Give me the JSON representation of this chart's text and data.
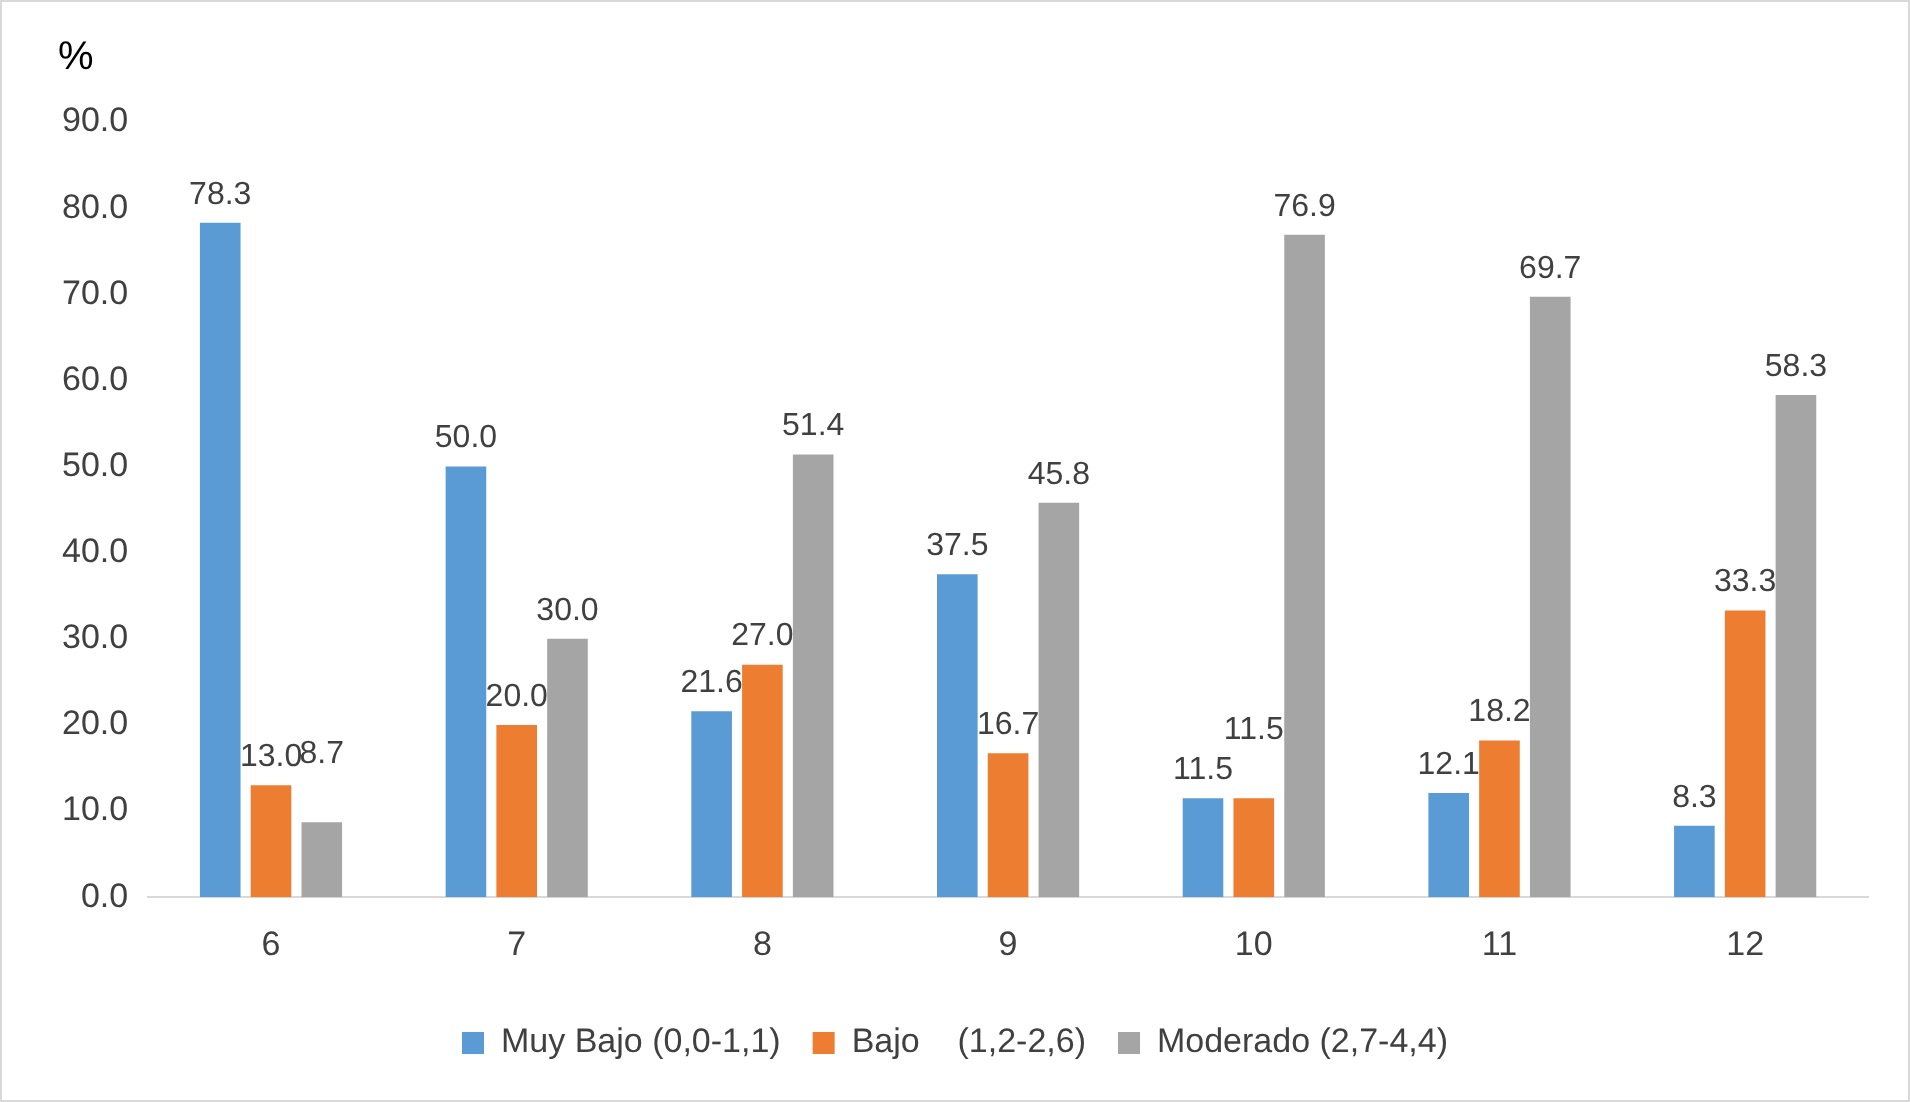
{
  "chart_data": {
    "type": "bar",
    "ylabel": "%",
    "categories": [
      "6",
      "7",
      "8",
      "9",
      "10",
      "11",
      "12"
    ],
    "series": [
      {
        "name": "Muy Bajo (0,0-1,1)",
        "color": "#5b9bd5",
        "values": [
          78.3,
          50.0,
          21.6,
          37.5,
          11.5,
          12.1,
          8.3
        ],
        "value_labels": [
          "78.3",
          "50.0",
          "21.6",
          "37.5",
          "11.5",
          "12.1",
          "8.3"
        ]
      },
      {
        "name": "Bajo    (1,2-2,6)",
        "color": "#ed7d31",
        "values": [
          13.0,
          20.0,
          27.0,
          16.7,
          11.5,
          18.2,
          33.3
        ],
        "value_labels": [
          "13.0",
          "20.0",
          "27.0",
          "16.7",
          "11.5",
          "18.2",
          "33.3"
        ]
      },
      {
        "name": "Moderado (2,7-4,4)",
        "color": "#a5a5a5",
        "values": [
          8.7,
          30.0,
          51.4,
          45.8,
          76.9,
          69.7,
          58.3
        ],
        "value_labels": [
          "8.7",
          "30.0",
          "51.4",
          "45.8",
          "76.9",
          "69.7",
          "58.3"
        ]
      }
    ],
    "ylim": [
      0,
      90
    ],
    "yticks": [
      {
        "value": 0,
        "label": "0.0"
      },
      {
        "value": 10,
        "label": "10.0"
      },
      {
        "value": 20,
        "label": "20.0"
      },
      {
        "value": 30,
        "label": "30.0"
      },
      {
        "value": 40,
        "label": "40.0"
      },
      {
        "value": 50,
        "label": "50.0"
      },
      {
        "value": 60,
        "label": "60.0"
      },
      {
        "value": 70,
        "label": "70.0"
      },
      {
        "value": 80,
        "label": "80.0"
      },
      {
        "value": 90,
        "label": "90.0"
      }
    ],
    "grid": false,
    "legend": "bottom"
  }
}
